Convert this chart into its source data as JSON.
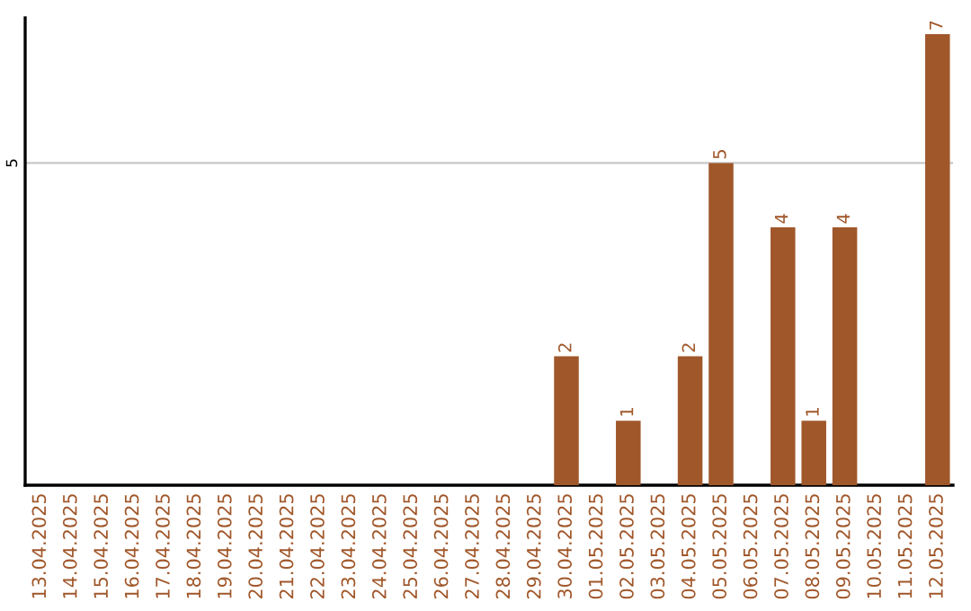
{
  "chart_data": {
    "type": "bar",
    "categories": [
      "13.04.2025",
      "14.04.2025",
      "15.04.2025",
      "16.04.2025",
      "17.04.2025",
      "18.04.2025",
      "19.04.2025",
      "20.04.2025",
      "21.04.2025",
      "22.04.2025",
      "23.04.2025",
      "24.04.2025",
      "25.04.2025",
      "26.04.2025",
      "27.04.2025",
      "28.04.2025",
      "29.04.2025",
      "30.04.2025",
      "01.05.2025",
      "02.05.2025",
      "03.05.2025",
      "04.05.2025",
      "05.05.2025",
      "06.05.2025",
      "07.05.2025",
      "08.05.2025",
      "09.05.2025",
      "10.05.2025",
      "11.05.2025",
      "12.05.2025"
    ],
    "values": [
      null,
      null,
      null,
      null,
      null,
      null,
      null,
      null,
      null,
      null,
      null,
      null,
      null,
      null,
      null,
      null,
      null,
      2,
      null,
      1,
      null,
      2,
      5,
      null,
      4,
      1,
      4,
      null,
      null,
      7
    ],
    "color": "#a0572a",
    "ylim": [
      0,
      7.25
    ],
    "yticks": [
      5
    ],
    "grid": "y",
    "data_labels": true
  }
}
